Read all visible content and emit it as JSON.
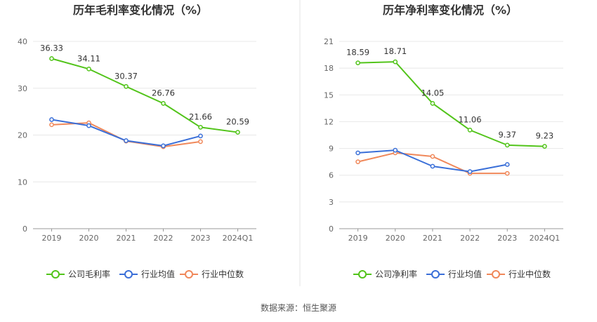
{
  "footer": {
    "source_text": "数据来源：恒生聚源"
  },
  "chart_data": [
    {
      "type": "line",
      "title": "历年毛利率变化情况（%）",
      "categories": [
        "2019",
        "2020",
        "2021",
        "2022",
        "2023",
        "2024Q1"
      ],
      "ylim": [
        0,
        40
      ],
      "yticks": [
        0,
        10,
        20,
        30,
        40
      ],
      "grid": true,
      "legend_placement": "bottom",
      "series": [
        {
          "name": "公司毛利率",
          "color": "#52c41a",
          "values": [
            36.33,
            34.11,
            30.37,
            26.76,
            21.66,
            20.59
          ],
          "labels": true
        },
        {
          "name": "行业均值",
          "color": "#3a6fd8",
          "values": [
            23.3,
            22.0,
            18.8,
            17.7,
            19.8,
            null
          ],
          "labels": false
        },
        {
          "name": "行业中位数",
          "color": "#f0885a",
          "values": [
            22.2,
            22.6,
            18.7,
            17.5,
            18.6,
            null
          ],
          "labels": false
        }
      ]
    },
    {
      "type": "line",
      "title": "历年净利率变化情况（%）",
      "categories": [
        "2019",
        "2020",
        "2021",
        "2022",
        "2023",
        "2024Q1"
      ],
      "ylim": [
        0,
        21
      ],
      "yticks": [
        0,
        3,
        6,
        9,
        12,
        15,
        18,
        21
      ],
      "grid": true,
      "legend_placement": "bottom",
      "series": [
        {
          "name": "公司净利率",
          "color": "#52c41a",
          "values": [
            18.59,
            18.71,
            14.05,
            11.06,
            9.37,
            9.23
          ],
          "labels": true
        },
        {
          "name": "行业均值",
          "color": "#3a6fd8",
          "values": [
            8.5,
            8.8,
            7.0,
            6.4,
            7.2,
            null
          ],
          "labels": false
        },
        {
          "name": "行业中位数",
          "color": "#f0885a",
          "values": [
            7.5,
            8.5,
            8.1,
            6.2,
            6.2,
            null
          ],
          "labels": false
        }
      ]
    }
  ]
}
